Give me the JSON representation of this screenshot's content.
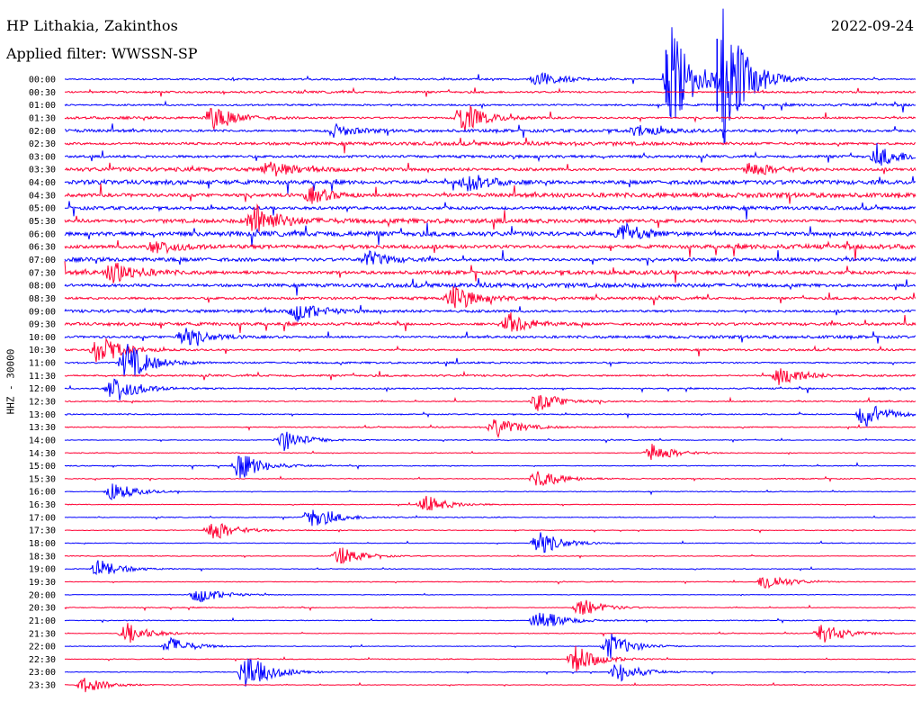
{
  "header": {
    "station": "HP Lithakia, Zakinthos",
    "date": "2022-09-24",
    "filter": "Applied filter: WWSSN-SP"
  },
  "chart_data": {
    "type": "line",
    "title": "HP Lithakia, Zakinthos",
    "subtitle": "Applied filter: WWSSN-SP",
    "date": "2022-09-24",
    "ylabel": "HHZ - 30000",
    "row_labels": [
      "00:00",
      "00:30",
      "01:00",
      "01:30",
      "02:00",
      "02:30",
      "03:00",
      "03:30",
      "04:00",
      "04:30",
      "05:00",
      "05:30",
      "06:00",
      "06:30",
      "07:00",
      "07:30",
      "08:00",
      "08:30",
      "09:00",
      "09:30",
      "10:00",
      "10:30",
      "11:00",
      "11:30",
      "12:00",
      "12:30",
      "13:00",
      "13:30",
      "14:00",
      "14:30",
      "15:00",
      "15:30",
      "16:00",
      "16:30",
      "17:00",
      "17:30",
      "18:00",
      "18:30",
      "19:00",
      "19:30",
      "20:00",
      "20:30",
      "21:00",
      "21:30",
      "22:00",
      "22:30",
      "23:00",
      "23:30"
    ],
    "row_colors": [
      "#0000ff",
      "#ff0033"
    ],
    "rows_per_hour": 2,
    "minutes_per_row": 30,
    "events": [
      {
        "row": 0,
        "minute": 16.5,
        "amp": 1.0
      },
      {
        "row": 0,
        "minute": 21.2,
        "amp": 6.5
      },
      {
        "row": 0,
        "minute": 23.0,
        "amp": 9.0
      },
      {
        "row": 3,
        "minute": 5.0,
        "amp": 1.5
      },
      {
        "row": 3,
        "minute": 13.8,
        "amp": 2.0
      },
      {
        "row": 4,
        "minute": 9.3,
        "amp": 0.8
      },
      {
        "row": 4,
        "minute": 20.0,
        "amp": 0.7
      },
      {
        "row": 6,
        "minute": 28.5,
        "amp": 1.2
      },
      {
        "row": 7,
        "minute": 7.0,
        "amp": 1.0
      },
      {
        "row": 7,
        "minute": 24.0,
        "amp": 1.0
      },
      {
        "row": 8,
        "minute": 14.0,
        "amp": 1.5
      },
      {
        "row": 9,
        "minute": 8.5,
        "amp": 1.0
      },
      {
        "row": 11,
        "minute": 6.5,
        "amp": 2.2
      },
      {
        "row": 12,
        "minute": 19.5,
        "amp": 1.4
      },
      {
        "row": 13,
        "minute": 3.0,
        "amp": 1.0
      },
      {
        "row": 14,
        "minute": 10.5,
        "amp": 1.0
      },
      {
        "row": 15,
        "minute": 1.5,
        "amp": 1.5
      },
      {
        "row": 17,
        "minute": 13.5,
        "amp": 1.5
      },
      {
        "row": 18,
        "minute": 8.0,
        "amp": 1.2
      },
      {
        "row": 19,
        "minute": 15.5,
        "amp": 1.4
      },
      {
        "row": 20,
        "minute": 4.0,
        "amp": 1.2
      },
      {
        "row": 21,
        "minute": 1.0,
        "amp": 2.0
      },
      {
        "row": 22,
        "minute": 2.0,
        "amp": 2.5
      },
      {
        "row": 23,
        "minute": 25.0,
        "amp": 1.5
      },
      {
        "row": 24,
        "minute": 1.5,
        "amp": 2.0
      },
      {
        "row": 25,
        "minute": 16.5,
        "amp": 1.3
      },
      {
        "row": 26,
        "minute": 28.0,
        "amp": 1.7
      },
      {
        "row": 27,
        "minute": 15.0,
        "amp": 1.3
      },
      {
        "row": 28,
        "minute": 7.5,
        "amp": 1.4
      },
      {
        "row": 29,
        "minute": 20.5,
        "amp": 1.2
      },
      {
        "row": 30,
        "minute": 6.0,
        "amp": 1.7
      },
      {
        "row": 31,
        "minute": 16.5,
        "amp": 1.3
      },
      {
        "row": 32,
        "minute": 1.5,
        "amp": 1.2
      },
      {
        "row": 33,
        "minute": 12.5,
        "amp": 1.2
      },
      {
        "row": 34,
        "minute": 8.5,
        "amp": 1.6
      },
      {
        "row": 35,
        "minute": 5.0,
        "amp": 1.4
      },
      {
        "row": 36,
        "minute": 16.5,
        "amp": 1.6
      },
      {
        "row": 37,
        "minute": 9.5,
        "amp": 1.2
      },
      {
        "row": 38,
        "minute": 1.0,
        "amp": 1.2
      },
      {
        "row": 39,
        "minute": 24.5,
        "amp": 1.2
      },
      {
        "row": 40,
        "minute": 4.5,
        "amp": 1.1
      },
      {
        "row": 41,
        "minute": 18.0,
        "amp": 1.2
      },
      {
        "row": 42,
        "minute": 16.5,
        "amp": 1.6
      },
      {
        "row": 43,
        "minute": 2.0,
        "amp": 1.3
      },
      {
        "row": 43,
        "minute": 26.5,
        "amp": 1.4
      },
      {
        "row": 44,
        "minute": 3.5,
        "amp": 1.2
      },
      {
        "row": 44,
        "minute": 19.0,
        "amp": 1.7
      },
      {
        "row": 45,
        "minute": 17.8,
        "amp": 1.8
      },
      {
        "row": 46,
        "minute": 6.2,
        "amp": 2.5
      },
      {
        "row": 46,
        "minute": 19.3,
        "amp": 1.4
      },
      {
        "row": 47,
        "minute": 0.5,
        "amp": 1.0
      }
    ]
  }
}
